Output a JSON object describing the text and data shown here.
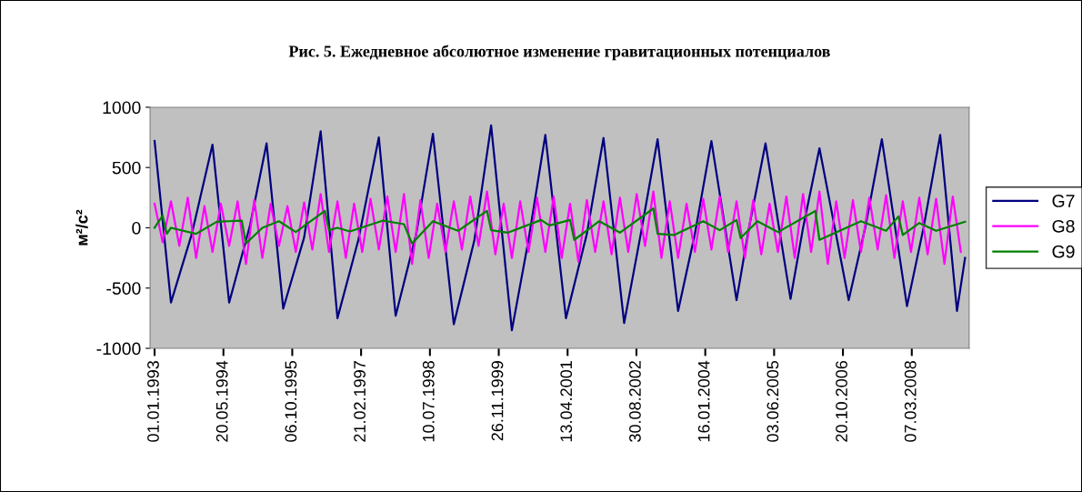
{
  "chart_data": {
    "type": "line",
    "title": "Рис. 5. Ежедневное абсолютное изменение гравитационных потенциалов",
    "ylabel": "м²/с²",
    "xlim": [
      "1992-11-29",
      "2009-05-01"
    ],
    "xticks": [
      {
        "value": "1993-01-01",
        "label": "01.01.1993"
      },
      {
        "value": "1994-05-20",
        "label": "20.05.1994"
      },
      {
        "value": "1995-10-06",
        "label": "06.10.1995"
      },
      {
        "value": "1997-02-21",
        "label": "21.02.1997"
      },
      {
        "value": "1998-07-10",
        "label": "10.07.1998"
      },
      {
        "value": "1999-11-26",
        "label": "26.11.1999"
      },
      {
        "value": "2001-04-13",
        "label": "13.04.2001"
      },
      {
        "value": "2002-08-30",
        "label": "30.08.2002"
      },
      {
        "value": "2004-01-16",
        "label": "16.01.2004"
      },
      {
        "value": "2005-06-03",
        "label": "03.06.2005"
      },
      {
        "value": "2006-10-20",
        "label": "20.10.2006"
      },
      {
        "value": "2008-03-07",
        "label": "07.03.2008"
      }
    ],
    "ylim": [
      -1000,
      1000
    ],
    "yticks": [
      -1000,
      -500,
      0,
      500,
      1000
    ],
    "grid": false,
    "legend": "right",
    "series": [
      {
        "name": "G7",
        "color": "#000080",
        "x": [
          "1993-01",
          "1993-05",
          "1993-10",
          "1994-03",
          "1994-07",
          "1994-12",
          "1995-04",
          "1995-08",
          "1996-01",
          "1996-05",
          "1996-09",
          "1997-02",
          "1997-07",
          "1997-11",
          "1998-04",
          "1998-08",
          "1999-01",
          "1999-06",
          "1999-10",
          "2000-03",
          "2000-07",
          "2000-11",
          "2001-04",
          "2001-09",
          "2002-01",
          "2002-06",
          "2002-10",
          "2003-02",
          "2003-07",
          "2003-11",
          "2004-03",
          "2004-09",
          "2004-12",
          "2005-04",
          "2005-10",
          "2006-01",
          "2006-05",
          "2006-12",
          "2007-04",
          "2007-08",
          "2008-02",
          "2008-06",
          "2008-10",
          "2009-02",
          "2009-04"
        ],
        "values": [
          720,
          -620,
          -50,
          690,
          -620,
          20,
          700,
          -670,
          -80,
          800,
          -750,
          -100,
          750,
          -730,
          -50,
          780,
          -800,
          -100,
          850,
          -850,
          -100,
          770,
          -750,
          -50,
          745,
          -790,
          -50,
          735,
          -690,
          -50,
          720,
          -600,
          0,
          700,
          -590,
          0,
          660,
          -600,
          0,
          735,
          -650,
          0,
          770,
          -690,
          -250
        ]
      },
      {
        "name": "G8",
        "color": "#ff00ff",
        "x": [
          "1993-01",
          "1993-03",
          "1993-05",
          "1993-07",
          "1993-09",
          "1993-11",
          "1994-01",
          "1994-03",
          "1994-05",
          "1994-07",
          "1994-09",
          "1994-11",
          "1995-01",
          "1995-03",
          "1995-05",
          "1995-07",
          "1995-09",
          "1995-11",
          "1996-01",
          "1996-03",
          "1996-05",
          "1996-07",
          "1996-09",
          "1996-11",
          "1997-01",
          "1997-03",
          "1997-05",
          "1997-07",
          "1997-09",
          "1997-11",
          "1998-01",
          "1998-03",
          "1998-05",
          "1998-07",
          "1998-09",
          "1998-11",
          "1999-01",
          "1999-03",
          "1999-05",
          "1999-07",
          "1999-09",
          "1999-11",
          "2000-01",
          "2000-03",
          "2000-05",
          "2000-07",
          "2000-09",
          "2000-11",
          "2001-01",
          "2001-03",
          "2001-05",
          "2001-07",
          "2001-09",
          "2001-11",
          "2002-01",
          "2002-03",
          "2002-05",
          "2002-07",
          "2002-09",
          "2002-11",
          "2003-01",
          "2003-03",
          "2003-05",
          "2003-07",
          "2003-09",
          "2003-11",
          "2004-01",
          "2004-03",
          "2004-05",
          "2004-07",
          "2004-09",
          "2004-11",
          "2005-01",
          "2005-03",
          "2005-05",
          "2005-07",
          "2005-09",
          "2005-11",
          "2006-01",
          "2006-03",
          "2006-05",
          "2006-07",
          "2006-09",
          "2006-11",
          "2007-01",
          "2007-03",
          "2007-05",
          "2007-07",
          "2007-09",
          "2007-11",
          "2008-01",
          "2008-03",
          "2008-05",
          "2008-07",
          "2008-09",
          "2008-11",
          "2009-01",
          "2009-03"
        ],
        "values": [
          200,
          -120,
          220,
          -150,
          250,
          -250,
          180,
          -200,
          200,
          -150,
          220,
          -300,
          230,
          -250,
          200,
          -150,
          180,
          -200,
          210,
          -180,
          280,
          -200,
          220,
          -250,
          200,
          -200,
          240,
          -180,
          260,
          -200,
          280,
          -300,
          230,
          -250,
          200,
          -200,
          220,
          -180,
          260,
          -150,
          300,
          -220,
          200,
          -250,
          220,
          -200,
          250,
          -200,
          260,
          -250,
          200,
          -280,
          230,
          -200,
          220,
          -220,
          250,
          -200,
          280,
          -150,
          300,
          -250,
          220,
          -250,
          200,
          -200,
          240,
          -180,
          260,
          -200,
          220,
          -250,
          230,
          -220,
          200,
          -200,
          260,
          -250,
          280,
          -200,
          300,
          -300,
          220,
          -250,
          230,
          -200,
          250,
          -180,
          270,
          -250,
          220,
          -200,
          250,
          -220,
          240,
          -300,
          260,
          -200
        ]
      },
      {
        "name": "G9",
        "color": "#008000",
        "x": [
          "1993-01",
          "1993-03",
          "1993-04",
          "1993-05",
          "1993-11",
          "1994-04",
          "1994-10",
          "1994-11",
          "1995-03",
          "1995-07",
          "1995-11",
          "1996-06",
          "1996-07",
          "1996-09",
          "1996-12",
          "1997-08",
          "1998-01",
          "1998-03",
          "1998-08",
          "1999-02",
          "1999-09",
          "1999-10",
          "2000-02",
          "2000-10",
          "2000-12",
          "2001-05",
          "2001-06",
          "2001-12",
          "2002-05",
          "2003-01",
          "2003-02",
          "2003-06",
          "2004-01",
          "2004-05",
          "2004-09",
          "2004-10",
          "2005-02",
          "2005-07",
          "2006-04",
          "2006-05",
          "2007-03",
          "2007-09",
          "2007-12",
          "2008-01",
          "2008-05",
          "2008-09",
          "2009-04"
        ],
        "values": [
          0,
          100,
          -50,
          0,
          -50,
          50,
          60,
          -130,
          0,
          55,
          -35,
          140,
          -20,
          0,
          -30,
          60,
          30,
          -130,
          55,
          -25,
          140,
          -20,
          -40,
          65,
          20,
          65,
          -100,
          55,
          -40,
          160,
          -50,
          -60,
          55,
          -20,
          65,
          -85,
          55,
          -35,
          140,
          -100,
          55,
          -25,
          95,
          -60,
          40,
          -25,
          50
        ]
      }
    ]
  }
}
